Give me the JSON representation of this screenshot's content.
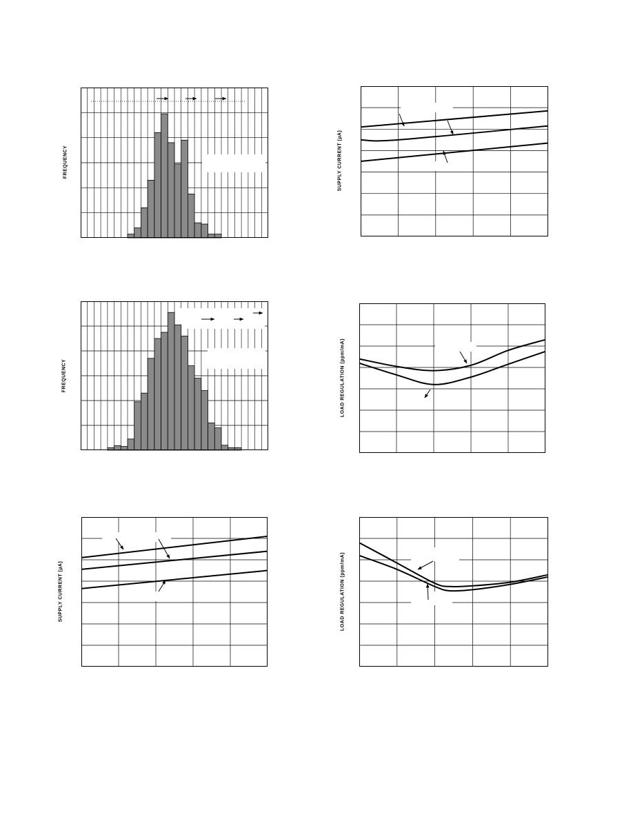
{
  "chart_data": [
    {
      "id": "histogram-1",
      "type": "bar",
      "ylabel": "FREQUENCY",
      "gridlines": true,
      "bins": 28,
      "ylim": [
        0,
        6
      ],
      "values": [
        0,
        0,
        0,
        0,
        0,
        0,
        0,
        0.15,
        0.4,
        1.2,
        2.3,
        4.2,
        4.95,
        3.8,
        2.95,
        3.9,
        1.75,
        0.6,
        0.55,
        0.15,
        0.15,
        0,
        0,
        0,
        0,
        0,
        0,
        0
      ]
    },
    {
      "id": "supply-current-1",
      "type": "line",
      "ylabel": "SUPPLY CURRENT (µA)",
      "gridlines": true,
      "xlim": [
        0,
        5
      ],
      "ylim": [
        0,
        7
      ],
      "series": [
        {
          "x": [
            0,
            5
          ],
          "y": [
            5.1,
            5.85
          ]
        },
        {
          "x": [
            0,
            1,
            5
          ],
          "y": [
            4.5,
            4.5,
            5.15
          ]
        },
        {
          "x": [
            0,
            5
          ],
          "y": [
            3.5,
            4.35
          ]
        }
      ]
    },
    {
      "id": "histogram-2",
      "type": "bar",
      "ylabel": "FREQUENCY",
      "gridlines": true,
      "bins": 28,
      "ylim": [
        0,
        6
      ],
      "values": [
        0,
        0,
        0,
        0,
        0.1,
        0.18,
        0.15,
        0.45,
        1.95,
        2.3,
        3.7,
        4.5,
        4.75,
        5.55,
        5.05,
        4.6,
        3.4,
        2.9,
        2.4,
        1.1,
        0.9,
        0.2,
        0.1,
        0.1,
        0,
        0,
        0,
        0
      ]
    },
    {
      "id": "load-regulation-1",
      "type": "line",
      "ylabel": "LOAD REGULATION (ppm/mA)",
      "gridlines": true,
      "xlim": [
        0,
        5
      ],
      "ylim": [
        0,
        7
      ],
      "series": [
        {
          "x": [
            0,
            1,
            2,
            3,
            4,
            5
          ],
          "y": [
            4.4,
            4.05,
            3.85,
            4.1,
            4.8,
            5.3
          ]
        },
        {
          "x": [
            0,
            1,
            2,
            3,
            4,
            5
          ],
          "y": [
            4.2,
            3.65,
            3.2,
            3.55,
            4.15,
            4.75
          ]
        }
      ]
    },
    {
      "id": "supply-current-2",
      "type": "line",
      "ylabel": "SUPPLY CURRENT (µA)",
      "gridlines": true,
      "xlim": [
        0,
        5
      ],
      "ylim": [
        0,
        7
      ],
      "series": [
        {
          "x": [
            0,
            5
          ],
          "y": [
            5.1,
            6.1
          ]
        },
        {
          "x": [
            0,
            5
          ],
          "y": [
            4.55,
            5.4
          ]
        },
        {
          "x": [
            0,
            5
          ],
          "y": [
            3.65,
            4.5
          ]
        }
      ]
    },
    {
      "id": "load-regulation-2",
      "type": "line",
      "ylabel": "LOAD REGULATION (ppm/mA)",
      "gridlines": true,
      "xlim": [
        0,
        5
      ],
      "ylim": [
        0,
        7
      ],
      "series": [
        {
          "x": [
            0,
            1,
            2,
            2.4,
            3,
            4,
            5
          ],
          "y": [
            5.8,
            4.85,
            3.9,
            3.75,
            3.78,
            3.95,
            4.3
          ]
        },
        {
          "x": [
            0,
            1,
            2,
            2.4,
            3,
            4,
            5
          ],
          "y": [
            5.2,
            4.55,
            3.75,
            3.55,
            3.6,
            3.85,
            4.2
          ]
        }
      ]
    }
  ]
}
